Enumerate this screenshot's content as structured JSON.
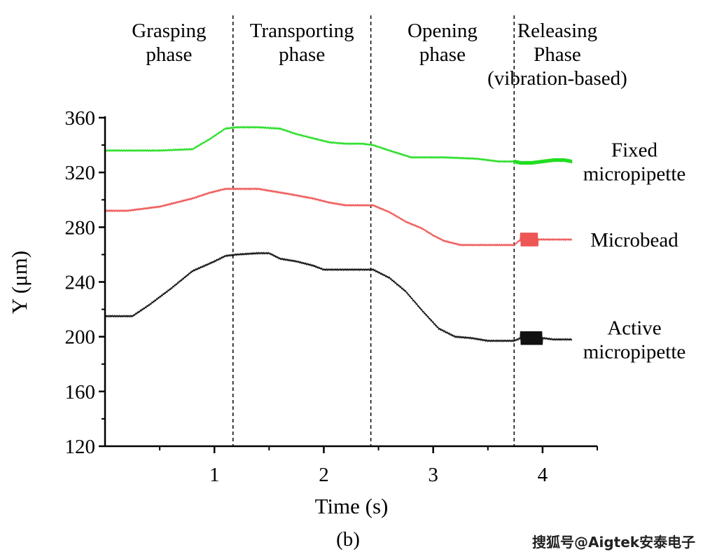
{
  "caption": "(b)",
  "watermark": "搜狐号@Aigtek安泰电子",
  "chart_data": {
    "type": "line",
    "xlabel": "Time (s)",
    "ylabel": "Y (μm)",
    "xlim": [
      0,
      4.5
    ],
    "ylim": [
      120,
      360
    ],
    "x_ticks": [
      1,
      2,
      3,
      4
    ],
    "y_ticks": [
      120,
      160,
      200,
      240,
      280,
      320,
      360
    ],
    "grid": false,
    "phase_boundaries": [
      1.17,
      2.43,
      3.74
    ],
    "phases": [
      {
        "lines": [
          "Grasping",
          "phase"
        ]
      },
      {
        "lines": [
          "Transporting",
          "phase"
        ]
      },
      {
        "lines": [
          "Opening",
          "phase"
        ]
      },
      {
        "lines": [
          "Releasing",
          "Phase",
          "(vibration-based)"
        ]
      }
    ],
    "series": [
      {
        "name": "Fixed micropipette",
        "label_lines": [
          "Fixed",
          "micropipette"
        ],
        "color": "#22dd22",
        "x": [
          0,
          0.2,
          0.5,
          0.8,
          0.95,
          1.1,
          1.2,
          1.4,
          1.6,
          1.75,
          1.9,
          2.05,
          2.2,
          2.35,
          2.45,
          2.6,
          2.8,
          2.95,
          3.1,
          3.4,
          3.6,
          3.74,
          3.8,
          3.9,
          4.0,
          4.1,
          4.2,
          4.27
        ],
        "y": [
          336,
          336,
          336,
          337,
          344,
          352,
          353,
          353,
          352,
          348,
          345,
          342,
          341,
          341,
          340,
          336,
          331,
          331,
          331,
          330,
          328,
          328,
          327,
          327,
          328,
          329,
          329,
          328
        ],
        "vibration": {
          "x_start": 3.74,
          "x_end": 4.27,
          "amplitude": 1.3
        }
      },
      {
        "name": "Microbead",
        "label_lines": [
          "Microbead"
        ],
        "color": "#ee5555",
        "x": [
          0,
          0.2,
          0.5,
          0.8,
          0.95,
          1.1,
          1.2,
          1.4,
          1.55,
          1.7,
          1.9,
          2.05,
          2.2,
          2.45,
          2.6,
          2.75,
          2.9,
          3.0,
          3.1,
          3.25,
          3.5,
          3.74,
          3.8,
          3.95,
          4.0,
          4.15,
          4.27
        ],
        "y": [
          292,
          292,
          295,
          301,
          305,
          308,
          308,
          308,
          306,
          304,
          301,
          298,
          296,
          296,
          291,
          284,
          279,
          274,
          270,
          267,
          267,
          267,
          271,
          271,
          271,
          271,
          271
        ],
        "vibration": {
          "x_start": 3.8,
          "x_end": 3.96,
          "amplitude": 5
        }
      },
      {
        "name": "Active micropipette",
        "label_lines": [
          "Active",
          "micropipette"
        ],
        "color": "#111111",
        "x": [
          0,
          0.25,
          0.4,
          0.6,
          0.8,
          1.0,
          1.1,
          1.2,
          1.4,
          1.5,
          1.6,
          1.75,
          1.9,
          2.0,
          2.1,
          2.45,
          2.6,
          2.75,
          2.9,
          3.05,
          3.2,
          3.35,
          3.5,
          3.74,
          3.8,
          4.0,
          4.1,
          4.27
        ],
        "y": [
          215,
          215,
          223,
          235,
          248,
          255,
          259,
          260,
          261,
          261,
          257,
          255,
          252,
          249,
          249,
          249,
          243,
          233,
          219,
          206,
          200,
          199,
          197,
          197,
          199,
          199,
          198,
          198
        ],
        "vibration": {
          "x_start": 3.8,
          "x_end": 4.0,
          "amplitude": 5
        }
      }
    ]
  }
}
